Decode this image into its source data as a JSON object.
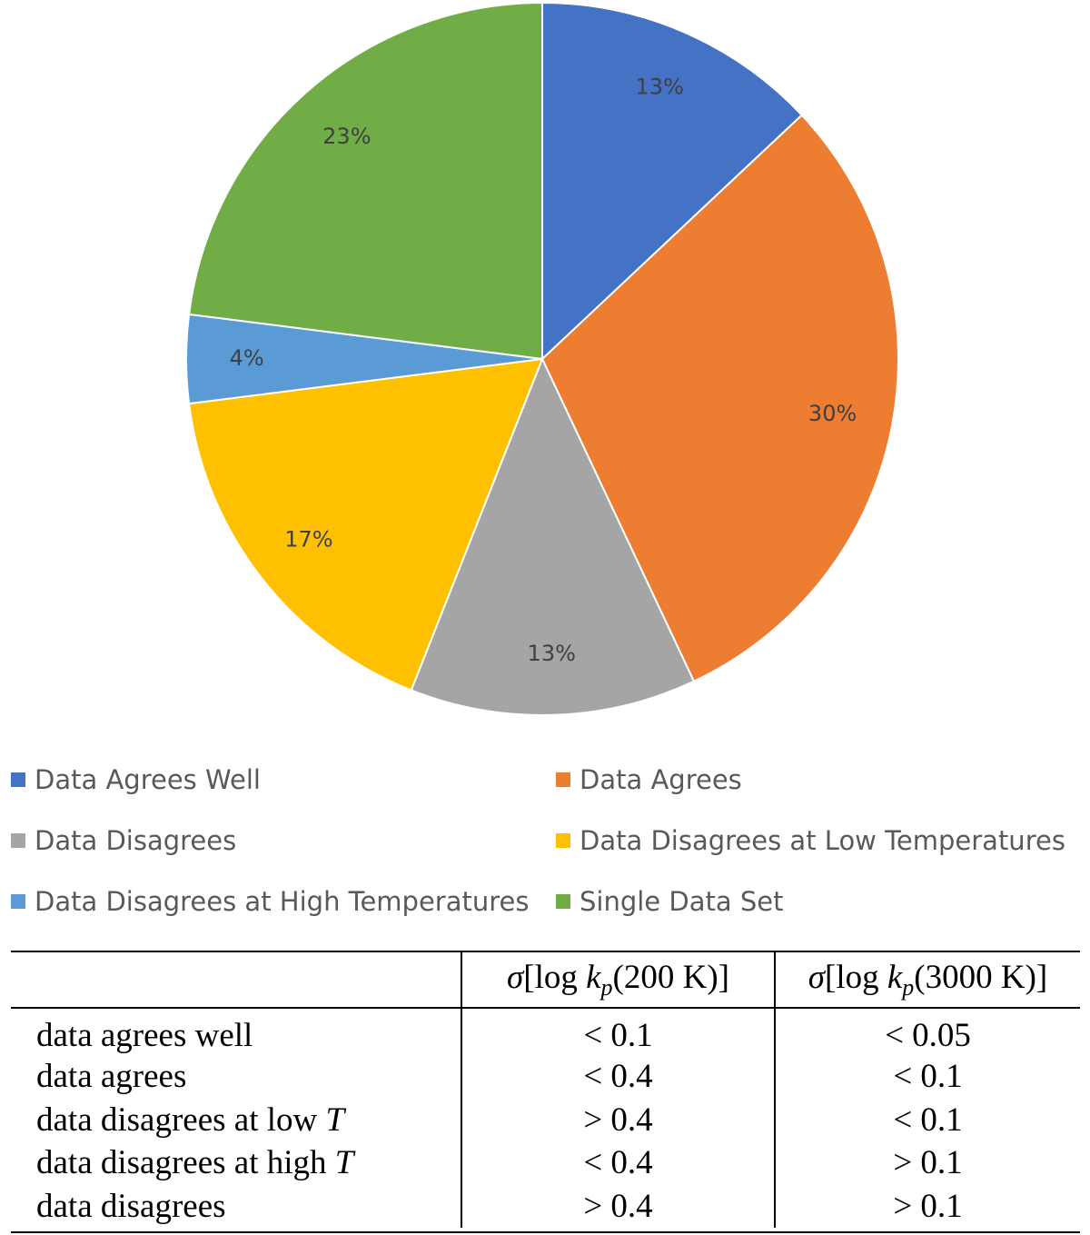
{
  "chart_data": {
    "type": "pie",
    "slices": [
      {
        "label": "Data Agrees Well",
        "value": 13,
        "label_text": "13%",
        "color": "#4472C4"
      },
      {
        "label": "Data Agrees",
        "value": 30,
        "label_text": "30%",
        "color": "#ED7D31"
      },
      {
        "label": "Data Disagrees",
        "value": 13,
        "label_text": "13%",
        "color": "#A5A5A5"
      },
      {
        "label": "Data Disagrees at Low Temperatures",
        "value": 17,
        "label_text": "17%",
        "color": "#FFC000"
      },
      {
        "label": "Data Disagrees at High Temperatures",
        "value": 4,
        "label_text": "4%",
        "color": "#5B9BD5"
      },
      {
        "label": "Single Data Set",
        "value": 23,
        "label_text": "23%",
        "color": "#70AD47"
      }
    ],
    "legend_placement": "bottom",
    "legend_order": [
      "Data Agrees Well",
      "Data Agrees",
      "Data Disagrees",
      "Data Disagrees at Low Temperatures",
      "Data Disagrees at High Temperatures",
      "Single Data Set"
    ]
  },
  "table": {
    "header": {
      "sigma": "σ",
      "open": "[log ",
      "k": "k",
      "p": "p",
      "col_a_temp": "(200 K)]",
      "col_b_temp": "(3000 K)]"
    },
    "rows": [
      {
        "label": "data agrees well",
        "label_t": "",
        "a": "< 0.1",
        "b": "< 0.05"
      },
      {
        "label": "data agrees",
        "label_t": "",
        "a": "< 0.4",
        "b": "< 0.1"
      },
      {
        "label": "data disagrees at low ",
        "label_t": "T",
        "a": "> 0.4",
        "b": "< 0.1"
      },
      {
        "label": "data disagrees at high ",
        "label_t": "T",
        "a": "< 0.4",
        "b": "> 0.1"
      },
      {
        "label": "data disagrees",
        "label_t": "",
        "a": "> 0.4",
        "b": "> 0.1"
      }
    ]
  }
}
